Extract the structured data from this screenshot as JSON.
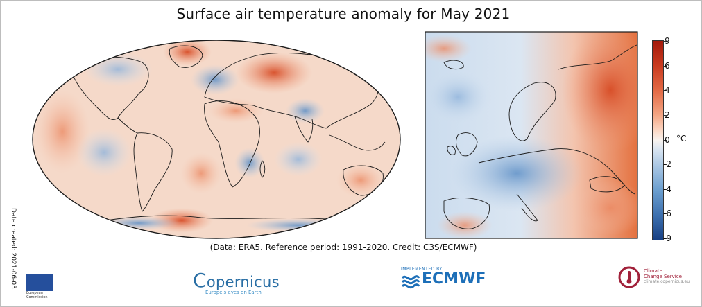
{
  "title": "Surface air temperature anomaly for May 2021",
  "date_created": "Date created: 2021-06-03",
  "credit": "(Data: ERA5.  Reference period: 1991-2020.  Credit: C3S/ECMWF)",
  "maps": {
    "global_label": "",
    "europe_label": ""
  },
  "colorbar": {
    "ticks": [
      "9",
      "6",
      "4",
      "2",
      "0",
      "-2",
      "-4",
      "-6",
      "-9"
    ],
    "unit": "°C",
    "colors": [
      "#a3190b",
      "#e36a45",
      "#f8f3ef",
      "#6c9fcf",
      "#173f83"
    ]
  },
  "logos": {
    "ec_name": "European Commission",
    "copernicus_word": "opernicus",
    "copernicus_tag": "Europe's eyes on Earth",
    "ecmwf_implemented": "IMPLEMENTED BY",
    "ecmwf_word": "ECMWF",
    "c3s_line1": "Climate",
    "c3s_line2": "Change Service",
    "c3s_line3": "climate.copernicus.eu"
  }
}
